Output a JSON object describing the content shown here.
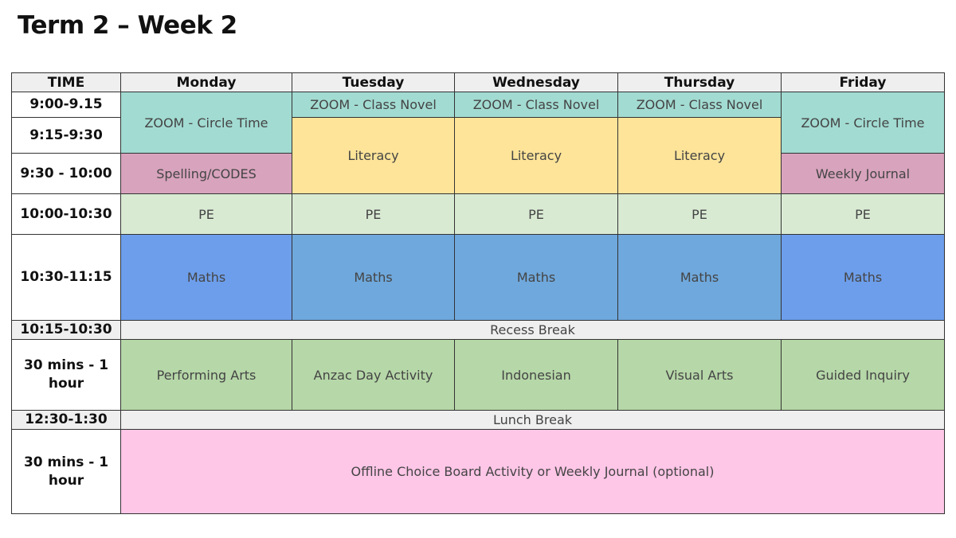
{
  "title": "Term 2 – Week 2",
  "headers": {
    "time": "TIME",
    "days": [
      "Monday",
      "Tuesday",
      "Wednesday",
      "Thursday",
      "Friday"
    ]
  },
  "times": {
    "t1": "9:00-9.15",
    "t2": "9:15-9:30",
    "t3": "9:30 - 10:00",
    "t4": "10:00-10:30",
    "t5": "10:30-11:15",
    "t6": "10:15-10:30",
    "t7": "30 mins - 1 hour",
    "t8": "12:30-1:30",
    "t9": "30 mins - 1 hour"
  },
  "activities": {
    "mon_circle": "ZOOM - Circle Time",
    "tue_novel": "ZOOM - Class Novel",
    "wed_novel": "ZOOM - Class Novel",
    "thu_novel": "ZOOM - Class Novel",
    "fri_circle": "ZOOM - Circle Time",
    "tue_literacy": "Literacy",
    "wed_literacy": "Literacy",
    "thu_literacy": "Literacy",
    "mon_spelling": "Spelling/CODES",
    "fri_journal": "Weekly Journal",
    "pe": [
      "PE",
      "PE",
      "PE",
      "PE",
      "PE"
    ],
    "maths": [
      "Maths",
      "Maths",
      "Maths",
      "Maths",
      "Maths"
    ],
    "recess": "Recess Break",
    "afternoon": [
      "Performing Arts",
      "Anzac Day Activity",
      "Indonesian",
      "Visual Arts",
      "Guided Inquiry"
    ],
    "lunch": "Lunch Break",
    "offline": "Offline Choice Board Activity or Weekly Journal (optional)"
  }
}
